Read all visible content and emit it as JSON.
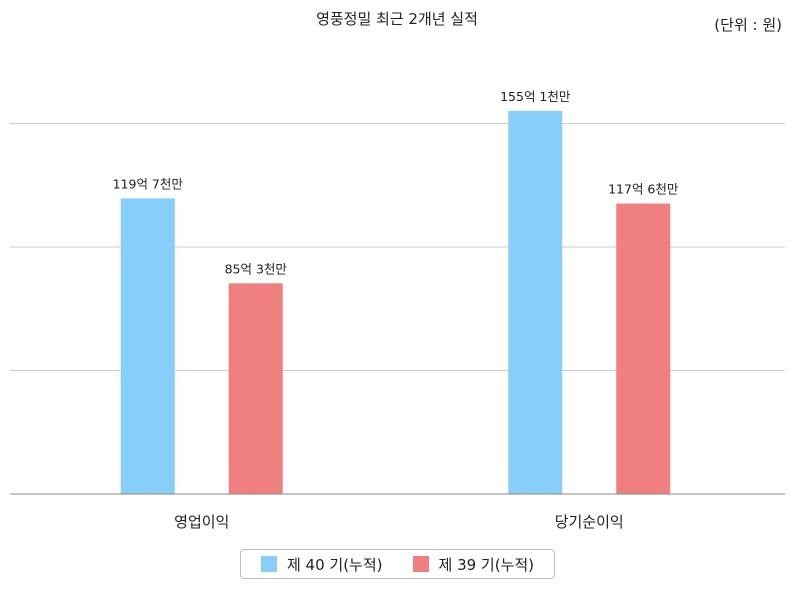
{
  "chart_data": {
    "type": "bar",
    "title": "영풍정밀 최근 2개년 실적",
    "unit_label": "(단위 : 원)",
    "categories": [
      "영업이익",
      "당기순이익"
    ],
    "series": [
      {
        "name": "제 40 기(누적)",
        "color": "#87cefa",
        "values": [
          11970000000,
          15510000000
        ],
        "labels": [
          "119억 7천만",
          "155억 1천만"
        ]
      },
      {
        "name": "제 39 기(누적)",
        "color": "#f08080",
        "values": [
          8530000000,
          11760000000
        ],
        "labels": [
          "85억 3천만",
          "117억 6천만"
        ]
      }
    ],
    "ylim": [
      0,
      20000000000
    ],
    "gridlines": [
      5000000000,
      10000000000,
      15000000000
    ],
    "grid": true,
    "legend_position": "bottom"
  }
}
